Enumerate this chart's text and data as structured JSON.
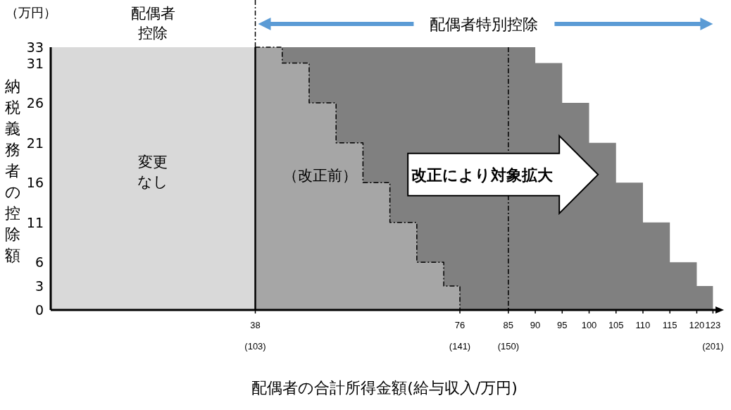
{
  "chart_data": {
    "type": "area",
    "xlabel": "配偶者の合計所得金額(給与収入/万円)",
    "ylabel": "納税義務者の控除額",
    "xlim": [
      0,
      124
    ],
    "ylim": [
      0,
      33
    ],
    "xticks": [
      {
        "value": 38,
        "label": "38\n(103)"
      },
      {
        "value": 76,
        "label": "76\n(141)"
      },
      {
        "value": 85,
        "label": "85\n(150)"
      },
      90,
      95,
      100,
      105,
      110,
      115,
      120,
      {
        "value": 123,
        "label": "123\n(201)"
      }
    ],
    "yticks": [
      0,
      3,
      6,
      11,
      16,
      21,
      26,
      31,
      33
    ],
    "series": [
      {
        "color": "#808080",
        "x": [
          38,
          90,
          90,
          95,
          95,
          100,
          100,
          105,
          105,
          110,
          110,
          115,
          115,
          120,
          120,
          123,
          123
        ],
        "values": [
          33,
          33,
          31,
          31,
          26,
          26,
          21,
          21,
          16,
          16,
          11,
          11,
          6,
          6,
          3,
          3,
          0
        ]
      },
      {
        "color": "#a6a6a6",
        "line_style": "dashed",
        "x": [
          38,
          43,
          43,
          48,
          48,
          53,
          53,
          58,
          58,
          63,
          63,
          68,
          68,
          73,
          73,
          76,
          76
        ],
        "values": [
          33,
          33,
          31,
          31,
          26,
          26,
          21,
          21,
          16,
          16,
          11,
          11,
          6,
          6,
          3,
          3,
          0
        ]
      },
      {
        "color": "#d9d9d9",
        "x": [
          0,
          38
        ],
        "values": [
          33,
          33
        ]
      }
    ],
    "ref_lines": [
      {
        "axis": "x",
        "value": 38,
        "line_style": "solid",
        "color": "#000000"
      },
      {
        "axis": "x",
        "value": 85,
        "line_style": "dashed",
        "color": "#000000"
      }
    ],
    "annotations": [
      "（万円）",
      "配偶者控除",
      "配偶者特別控除",
      "変更なし",
      "（改正前）",
      "改正により対象拡大"
    ],
    "grid": false
  }
}
